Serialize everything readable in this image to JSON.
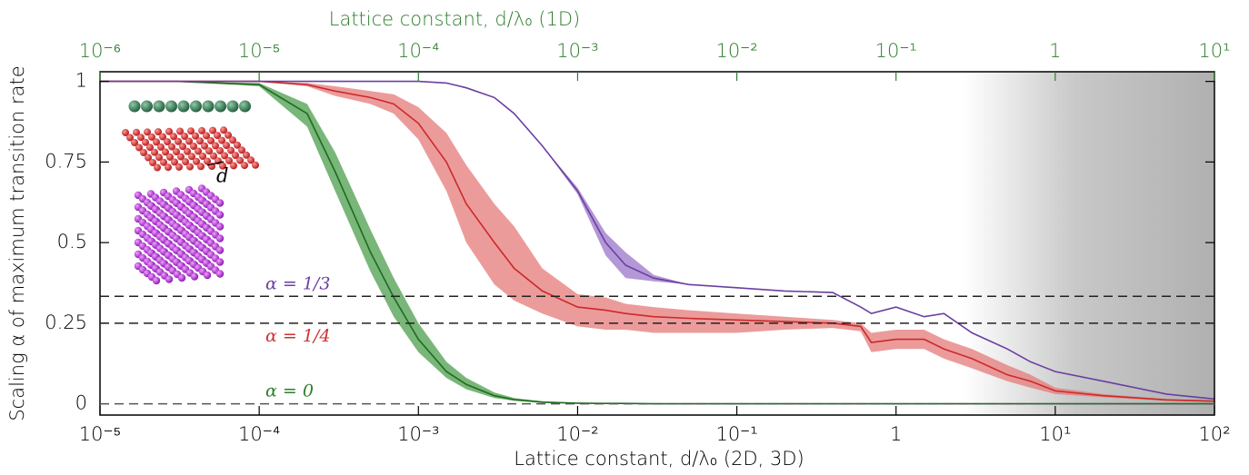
{
  "chart_data": {
    "type": "line",
    "title": "Lattice constant, d/λ₀ (1D)",
    "xlabel": "Lattice constant,  d/λ₀ (2D, 3D)",
    "ylabel": "Scaling α of maximum transition rate",
    "inset_label": "d",
    "log_x": true,
    "xlim": [
      1e-05,
      100
    ],
    "xticks": [
      {
        "value": 1e-05,
        "label": "10⁻⁵"
      },
      {
        "value": 0.0001,
        "label": "10⁻⁴"
      },
      {
        "value": 0.001,
        "label": "10⁻³"
      },
      {
        "value": 0.01,
        "label": "10⁻²"
      },
      {
        "value": 0.1,
        "label": "10⁻¹"
      },
      1,
      {
        "value": 10,
        "label": "10¹"
      },
      {
        "value": 100,
        "label": "10²"
      }
    ],
    "x2lim": [
      1e-06,
      10
    ],
    "x2ticks": [
      {
        "value": 1e-06,
        "label": "10⁻⁶"
      },
      {
        "value": 1e-05,
        "label": "10⁻⁵"
      },
      {
        "value": 0.0001,
        "label": "10⁻⁴"
      },
      {
        "value": 0.001,
        "label": "10⁻³"
      },
      {
        "value": 0.01,
        "label": "10⁻²"
      },
      {
        "value": 0.1,
        "label": "10⁻¹"
      },
      1,
      {
        "value": 10,
        "label": "10¹"
      }
    ],
    "x2_color": "#2e7d2e",
    "ylim": [
      -0.035,
      1.03
    ],
    "yticks": [
      0,
      0.25,
      0.5,
      0.75,
      1
    ],
    "reference_lines": [
      {
        "value": 0.3333,
        "label": "α = 1/3",
        "color": "#6a3fa0"
      },
      {
        "value": 0.25,
        "label": "α = 1/4",
        "color": "#cc3333"
      },
      {
        "value": 0,
        "label": "α = 0",
        "color": "#2e7d2e"
      }
    ],
    "x": [
      1e-05,
      3e-05,
      0.0001,
      0.0002,
      0.0003,
      0.0005,
      0.0007,
      0.001,
      0.0015,
      0.002,
      0.003,
      0.004,
      0.006,
      0.01,
      0.015,
      0.02,
      0.03,
      0.05,
      0.1,
      0.2,
      0.4,
      0.6,
      0.7,
      1,
      1.5,
      2,
      3,
      5,
      7,
      10,
      20,
      50,
      100
    ],
    "series": [
      {
        "color": "#1f6b1f",
        "band_color": "#4c9e4c",
        "values": [
          1,
          1,
          0.99,
          0.9,
          0.72,
          0.47,
          0.33,
          0.2,
          0.1,
          0.06,
          0.025,
          0.013,
          0.005,
          0.002,
          0.001,
          0.001,
          0,
          0,
          0,
          0,
          0,
          0,
          0,
          0,
          0,
          0,
          0,
          0,
          0,
          0,
          0,
          0,
          0
        ],
        "upper": [
          1,
          1,
          0.995,
          0.93,
          0.78,
          0.54,
          0.39,
          0.25,
          0.13,
          0.08,
          0.035,
          0.018,
          0.008,
          0.003,
          0.002,
          0.001,
          0,
          0,
          0,
          0,
          0,
          0,
          0,
          0,
          0,
          0,
          0,
          0,
          0,
          0,
          0,
          0,
          0
        ],
        "lower": [
          1,
          1,
          0.985,
          0.86,
          0.66,
          0.41,
          0.27,
          0.16,
          0.08,
          0.045,
          0.018,
          0.009,
          0.003,
          0.001,
          0,
          0,
          0,
          0,
          0,
          0,
          0,
          0,
          0,
          0,
          0,
          0,
          0,
          0,
          0,
          0,
          0,
          0,
          0
        ]
      },
      {
        "color": "#cc2a2a",
        "band_color": "#e57a7a",
        "values": [
          1,
          1,
          1,
          0.99,
          0.97,
          0.95,
          0.93,
          0.87,
          0.75,
          0.62,
          0.5,
          0.42,
          0.35,
          0.3,
          0.29,
          0.28,
          0.27,
          0.265,
          0.26,
          0.255,
          0.25,
          0.24,
          0.19,
          0.2,
          0.2,
          0.17,
          0.14,
          0.09,
          0.07,
          0.04,
          0.025,
          0.012,
          0.008
        ],
        "upper": [
          1,
          1,
          1,
          0.995,
          0.985,
          0.97,
          0.96,
          0.92,
          0.84,
          0.74,
          0.62,
          0.55,
          0.42,
          0.34,
          0.33,
          0.31,
          0.3,
          0.29,
          0.28,
          0.27,
          0.26,
          0.25,
          0.22,
          0.23,
          0.23,
          0.2,
          0.17,
          0.12,
          0.09,
          0.05,
          0.03,
          0.015,
          0.01
        ],
        "lower": [
          1,
          1,
          1,
          0.985,
          0.955,
          0.93,
          0.9,
          0.82,
          0.66,
          0.5,
          0.37,
          0.32,
          0.28,
          0.24,
          0.23,
          0.23,
          0.22,
          0.22,
          0.22,
          0.23,
          0.235,
          0.225,
          0.16,
          0.17,
          0.17,
          0.14,
          0.11,
          0.07,
          0.05,
          0.03,
          0.02,
          0.009,
          0.006
        ]
      },
      {
        "color": "#6a3fa0",
        "band_color": "#9b74c9",
        "values": [
          1,
          1,
          1,
          1,
          1,
          1,
          1,
          1,
          0.995,
          0.98,
          0.95,
          0.9,
          0.8,
          0.66,
          0.5,
          0.43,
          0.39,
          0.37,
          0.36,
          0.35,
          0.345,
          0.3,
          0.28,
          0.3,
          0.27,
          0.28,
          0.22,
          0.17,
          0.13,
          0.1,
          0.07,
          0.03,
          0.015
        ],
        "upper": [
          1,
          1,
          1,
          1,
          1,
          1,
          1,
          1,
          0.995,
          0.98,
          0.95,
          0.9,
          0.8,
          0.67,
          0.53,
          0.47,
          0.4,
          0.37,
          0.36,
          0.35,
          0.345,
          0.3,
          0.28,
          0.3,
          0.27,
          0.28,
          0.22,
          0.17,
          0.13,
          0.1,
          0.07,
          0.03,
          0.015
        ],
        "lower": [
          1,
          1,
          1,
          1,
          1,
          1,
          1,
          1,
          0.995,
          0.98,
          0.95,
          0.9,
          0.8,
          0.65,
          0.46,
          0.39,
          0.38,
          0.37,
          0.36,
          0.35,
          0.345,
          0.3,
          0.28,
          0.3,
          0.27,
          0.28,
          0.22,
          0.17,
          0.13,
          0.1,
          0.07,
          0.03,
          0.015
        ]
      }
    ]
  }
}
